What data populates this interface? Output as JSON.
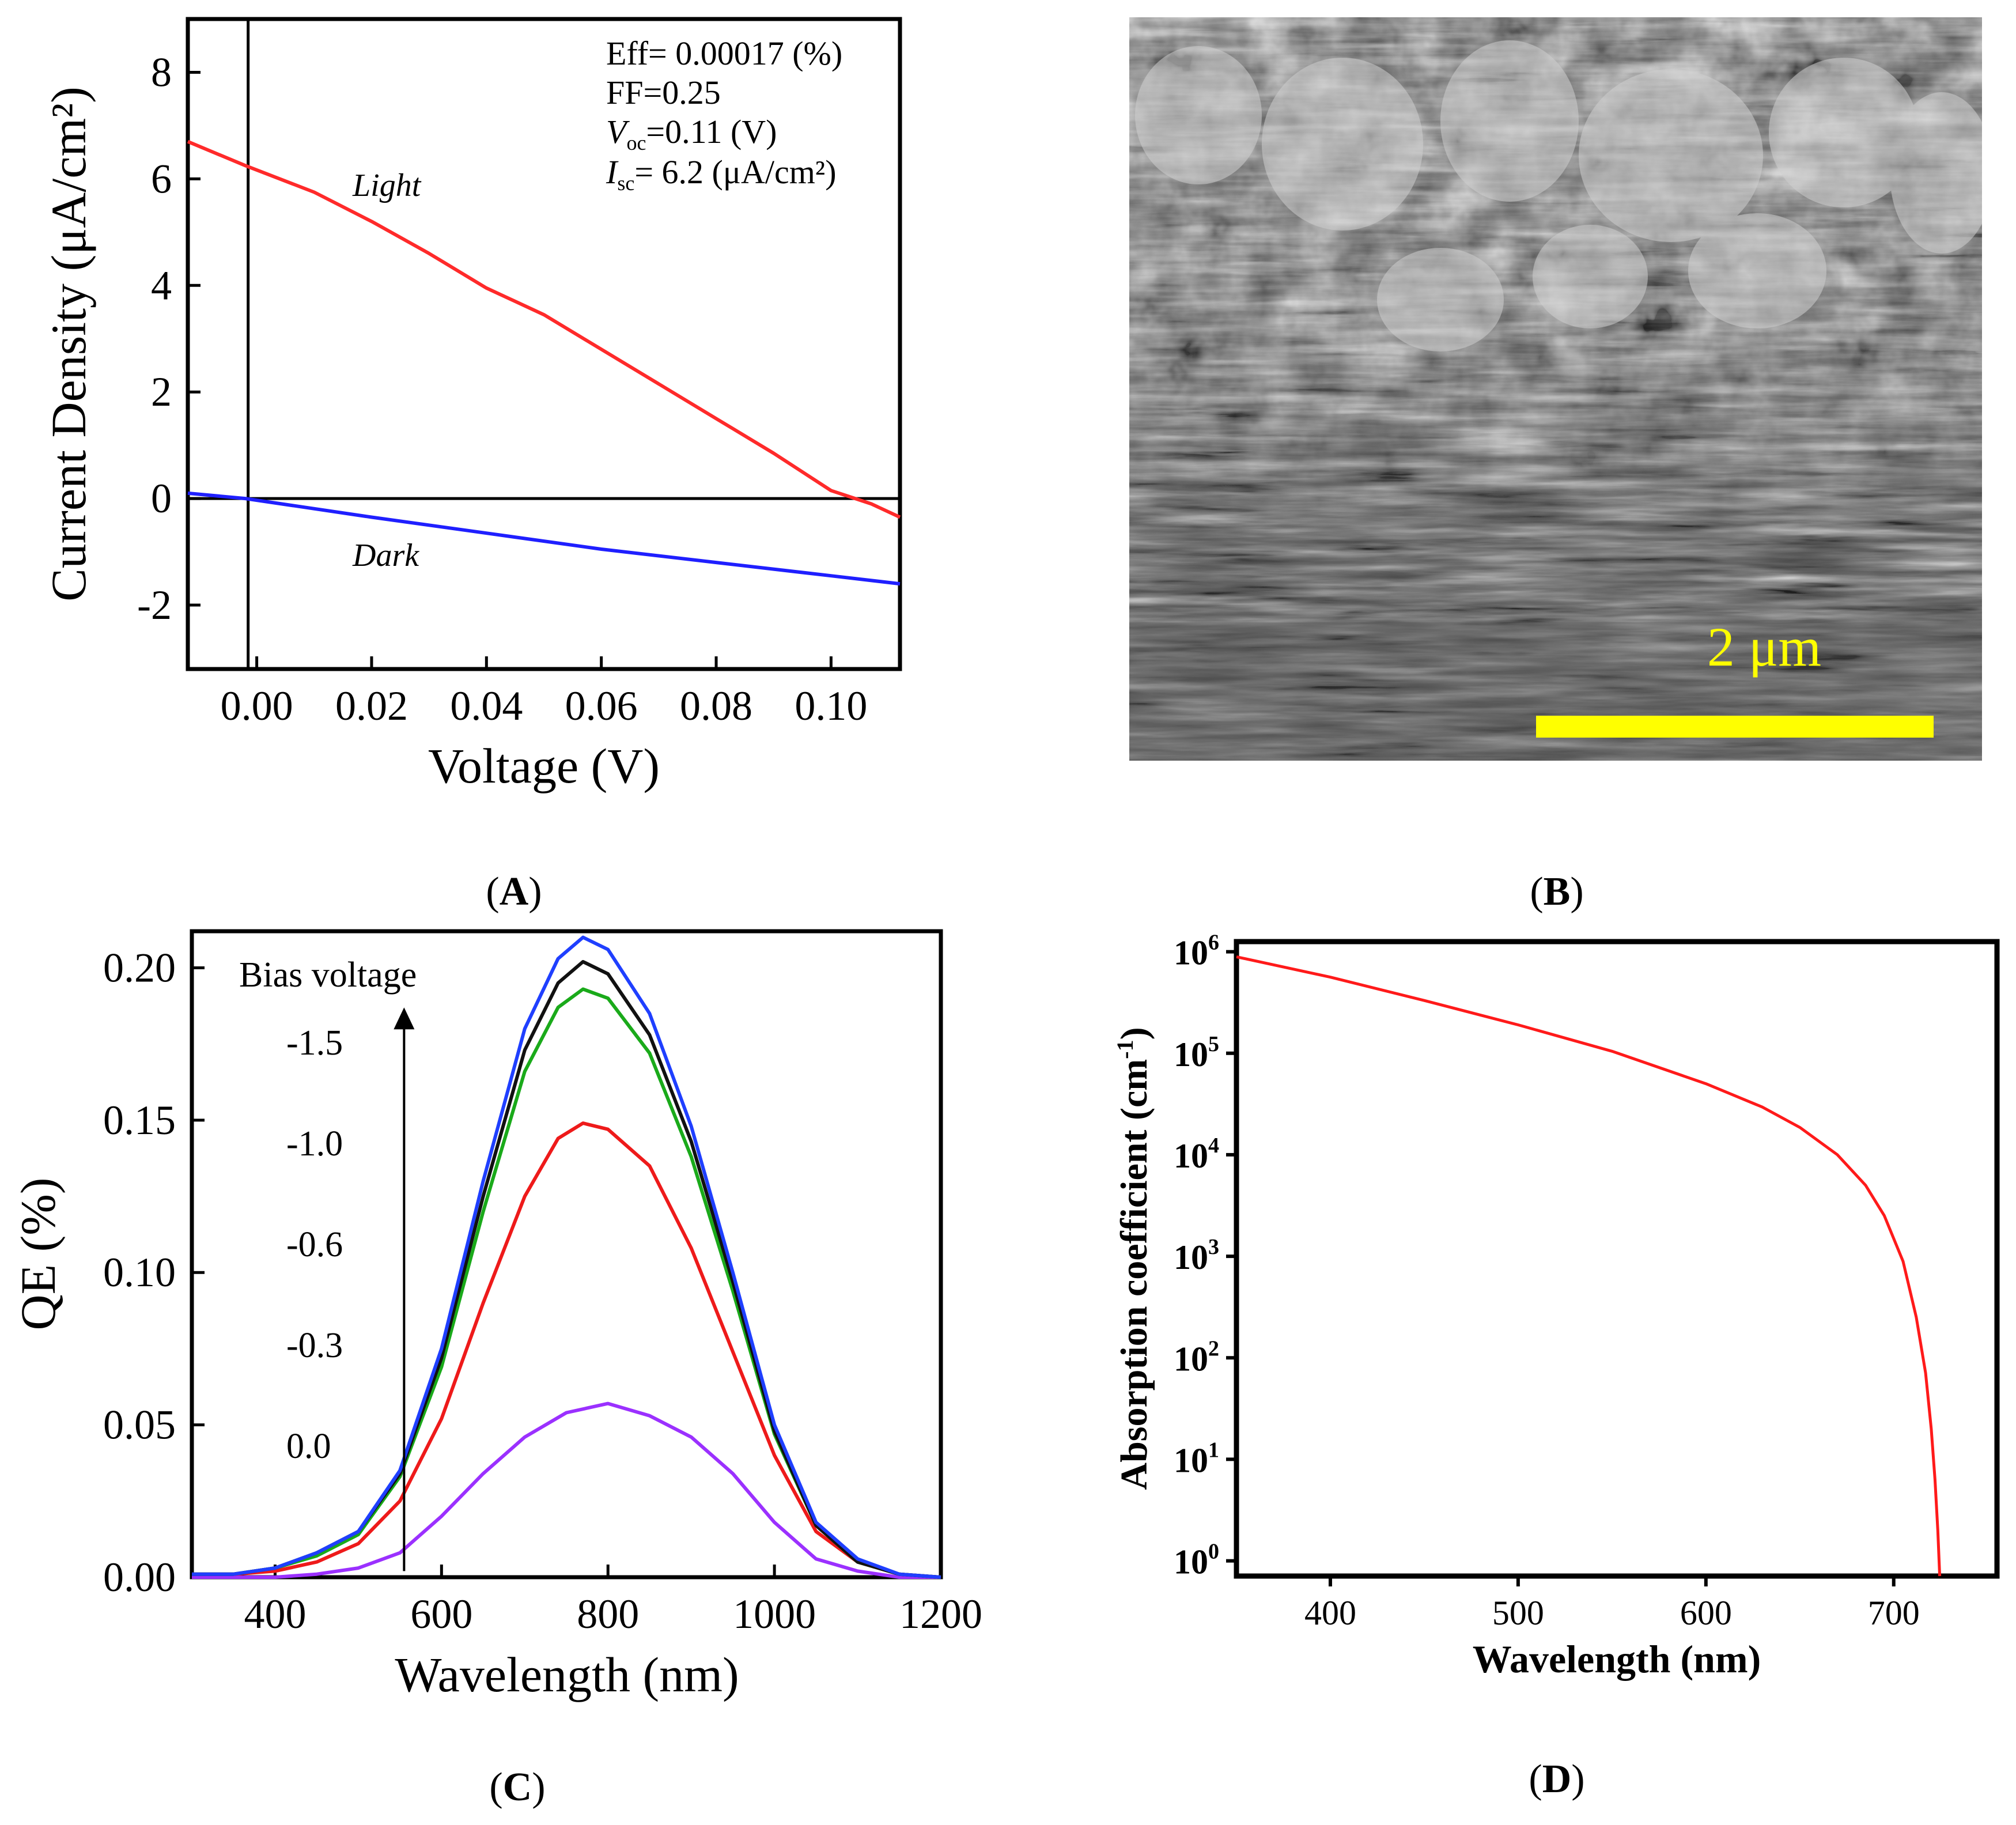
{
  "chart_data": [
    {
      "panel": "(A)",
      "type": "line",
      "xlabel": "Voltage (V)",
      "ylabel": "Current Density (μA/cm²)",
      "xlim": [
        -0.012,
        0.112
      ],
      "ylim": [
        -3.2,
        9.0
      ],
      "xticks": [
        0.0,
        0.02,
        0.04,
        0.06,
        0.08,
        0.1
      ],
      "xtick_labels": [
        "0.00",
        "0.02",
        "0.04",
        "0.06",
        "0.08",
        "0.10"
      ],
      "yticks": [
        -2,
        0,
        2,
        4,
        6,
        8
      ],
      "ytick_labels": [
        "-2",
        "0",
        "2",
        "4",
        "6",
        "8"
      ],
      "reference_lines": {
        "x": -0.0015,
        "y": 0
      },
      "annotations": {
        "eff": "Eff= 0.00017 (%)",
        "ff": "FF=0.25",
        "voc_symbol": "V",
        "voc_sub": "oc",
        "voc_value": "=0.11 (V)",
        "isc_symbol": "I",
        "isc_sub": "sc",
        "isc_value": "= 6.2 (μA/cm²)",
        "light_label": "Light",
        "dark_label": "Dark"
      },
      "series": [
        {
          "name": "Light",
          "color": "#ff2a2a",
          "x": [
            -0.012,
            -0.002,
            0.01,
            0.02,
            0.03,
            0.04,
            0.05,
            0.06,
            0.07,
            0.08,
            0.09,
            0.1,
            0.107,
            0.112
          ],
          "y": [
            6.7,
            6.25,
            5.75,
            5.2,
            4.6,
            3.95,
            3.45,
            2.8,
            2.15,
            1.5,
            0.85,
            0.15,
            -0.1,
            -0.35
          ]
        },
        {
          "name": "Dark",
          "color": "#1f1fff",
          "x": [
            -0.012,
            -0.002,
            0.02,
            0.04,
            0.06,
            0.08,
            0.1,
            0.112
          ],
          "y": [
            0.1,
            0.0,
            -0.35,
            -0.65,
            -0.95,
            -1.2,
            -1.45,
            -1.6
          ]
        }
      ]
    },
    {
      "panel": "(B)",
      "type": "image",
      "description_kind": "SEM micrograph",
      "scale_bar_label": "2 μm",
      "scale_bar_color": "#ffff00"
    },
    {
      "panel": "(C)",
      "type": "line",
      "xlabel": "Wavelength (nm)",
      "ylabel": "QE (%)",
      "xlim": [
        300,
        1200
      ],
      "ylim": [
        0,
        0.212
      ],
      "xticks": [
        400,
        600,
        800,
        1000,
        1200
      ],
      "xtick_labels": [
        "400",
        "600",
        "800",
        "1000",
        "1200"
      ],
      "yticks": [
        0,
        0.05,
        0.1,
        0.15,
        0.2
      ],
      "ytick_labels": [
        "0.00",
        "0.05",
        "0.10",
        "0.15",
        "0.20"
      ],
      "legend_title": "Bias voltage",
      "bias_labels": [
        "-1.5",
        "-1.0",
        "-0.6",
        "-0.3",
        "0.0"
      ],
      "arrow": {
        "x": 555,
        "y_start": 0.002,
        "y_end": 0.187
      },
      "series": [
        {
          "name": "-1.5 V",
          "color": "#1f3fff",
          "x": [
            300,
            350,
            400,
            450,
            500,
            550,
            600,
            650,
            700,
            740,
            770,
            800,
            850,
            900,
            950,
            1000,
            1050,
            1100,
            1150,
            1200
          ],
          "y": [
            0.001,
            0.001,
            0.003,
            0.008,
            0.015,
            0.035,
            0.075,
            0.13,
            0.18,
            0.203,
            0.21,
            0.206,
            0.185,
            0.148,
            0.1,
            0.05,
            0.018,
            0.006,
            0.001,
            0.0
          ]
        },
        {
          "name": "-1.0 V",
          "color": "#111111",
          "x": [
            300,
            350,
            400,
            450,
            500,
            550,
            600,
            650,
            700,
            740,
            770,
            800,
            850,
            900,
            950,
            1000,
            1050,
            1100,
            1150,
            1200
          ],
          "y": [
            0.001,
            0.001,
            0.003,
            0.008,
            0.015,
            0.034,
            0.072,
            0.125,
            0.173,
            0.195,
            0.202,
            0.198,
            0.178,
            0.143,
            0.097,
            0.048,
            0.017,
            0.005,
            0.001,
            0.0
          ]
        },
        {
          "name": "-0.6 V",
          "color": "#1aaa1a",
          "x": [
            300,
            350,
            400,
            450,
            500,
            550,
            600,
            650,
            700,
            740,
            770,
            800,
            850,
            900,
            950,
            1000,
            1050,
            1100,
            1150,
            1200
          ],
          "y": [
            0.001,
            0.001,
            0.003,
            0.007,
            0.014,
            0.033,
            0.069,
            0.12,
            0.166,
            0.187,
            0.193,
            0.19,
            0.172,
            0.138,
            0.094,
            0.047,
            0.017,
            0.005,
            0.001,
            0.0
          ]
        },
        {
          "name": "-0.3 V",
          "color": "#ee1a1a",
          "x": [
            300,
            350,
            400,
            450,
            500,
            550,
            600,
            650,
            700,
            740,
            770,
            800,
            850,
            900,
            950,
            1000,
            1050,
            1100,
            1150,
            1200
          ],
          "y": [
            0.001,
            0.001,
            0.002,
            0.005,
            0.011,
            0.025,
            0.052,
            0.09,
            0.125,
            0.144,
            0.149,
            0.147,
            0.135,
            0.108,
            0.074,
            0.04,
            0.015,
            0.005,
            0.001,
            0.0
          ]
        },
        {
          "name": "0.0 V",
          "color": "#9b30ff",
          "x": [
            300,
            400,
            450,
            500,
            550,
            600,
            650,
            700,
            750,
            800,
            850,
            900,
            950,
            1000,
            1050,
            1100,
            1150,
            1200
          ],
          "y": [
            0.0,
            0.0,
            0.001,
            0.003,
            0.008,
            0.02,
            0.034,
            0.046,
            0.054,
            0.057,
            0.053,
            0.046,
            0.034,
            0.018,
            0.006,
            0.002,
            0.0,
            0.0
          ]
        }
      ]
    },
    {
      "panel": "(D)",
      "type": "line",
      "xlabel": "Wavelength (nm)",
      "ylabel": "Absorption coefficient (cm⁻¹)",
      "xscale": "linear",
      "yscale": "log",
      "xlim": [
        350,
        755
      ],
      "ylim_log10": [
        -0.15,
        6.1
      ],
      "xticks": [
        400,
        500,
        600,
        700
      ],
      "xtick_labels": [
        "400",
        "500",
        "600",
        "700"
      ],
      "yticks_log10": [
        0,
        1,
        2,
        3,
        4,
        5,
        6
      ],
      "ytick_base": "10",
      "ytick_exponents": [
        "0",
        "1",
        "2",
        "3",
        "4",
        "5",
        "6"
      ],
      "ylabel_base": "Absorption coefficient (cm",
      "ylabel_sup": "-1",
      "ylabel_end": ")",
      "series": [
        {
          "name": "absorption",
          "color": "#ff1a1a",
          "x": [
            350,
            400,
            450,
            500,
            550,
            600,
            630,
            650,
            670,
            685,
            695,
            705,
            712,
            717,
            720,
            722,
            723.5,
            724.5
          ],
          "log10_y": [
            5.95,
            5.75,
            5.52,
            5.28,
            5.02,
            4.7,
            4.47,
            4.27,
            4.0,
            3.7,
            3.4,
            2.95,
            2.4,
            1.85,
            1.3,
            0.8,
            0.3,
            -0.15
          ]
        }
      ]
    }
  ],
  "panel_labels": {
    "a": "A",
    "b": "B",
    "c": "C",
    "d": "D"
  }
}
